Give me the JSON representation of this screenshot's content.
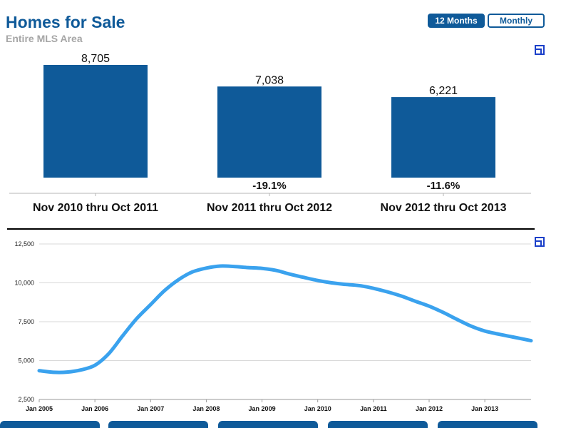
{
  "header": {
    "title": "Homes for Sale",
    "subtitle": "Entire MLS Area",
    "toggle_12": "12 Months",
    "toggle_monthly": "Monthly"
  },
  "colors": {
    "bar": "#0f5a99",
    "line": "#3aa2ee",
    "title": "#0f5a99",
    "subtitle": "#a6a6a6"
  },
  "chart_data": [
    {
      "type": "bar",
      "categories": [
        "Nov 2010 thru Oct 2011",
        "Nov 2011 thru Oct 2012",
        "Nov 2012 thru Oct 2013"
      ],
      "values": [
        8705,
        7038,
        6221
      ],
      "value_labels": [
        "8,705",
        "7,038",
        "6,221"
      ],
      "change_labels": [
        "",
        "-19.1%",
        "-11.6%"
      ],
      "ylim": [
        0,
        8705
      ]
    },
    {
      "type": "line",
      "x_ticks": [
        "Jan 2005",
        "Jan 2006",
        "Jan 2007",
        "Jan 2008",
        "Jan 2009",
        "Jan 2010",
        "Jan 2011",
        "Jan 2012",
        "Jan 2013"
      ],
      "y_ticks": [
        "2,500",
        "5,000",
        "7,500",
        "10,000",
        "12,500"
      ],
      "ylim": [
        2500,
        12500
      ],
      "xlim": [
        2005.0,
        2013.83
      ],
      "grid": true,
      "series": [
        {
          "x": [
            2005.0,
            2005.25,
            2005.5,
            2005.75,
            2006.0,
            2006.25,
            2006.5,
            2006.75,
            2007.0,
            2007.25,
            2007.5,
            2007.75,
            2008.0,
            2008.25,
            2008.5,
            2008.75,
            2009.0,
            2009.25,
            2009.5,
            2009.75,
            2010.0,
            2010.25,
            2010.5,
            2010.75,
            2011.0,
            2011.25,
            2011.5,
            2011.75,
            2012.0,
            2012.25,
            2012.5,
            2012.75,
            2013.0,
            2013.25,
            2013.5,
            2013.83
          ],
          "y": [
            4350,
            4250,
            4260,
            4400,
            4700,
            5450,
            6600,
            7700,
            8600,
            9500,
            10200,
            10700,
            10950,
            11080,
            11050,
            10980,
            10930,
            10800,
            10560,
            10350,
            10150,
            10000,
            9900,
            9820,
            9650,
            9420,
            9150,
            8820,
            8500,
            8100,
            7650,
            7220,
            6900,
            6700,
            6520,
            6280
          ]
        }
      ]
    }
  ]
}
